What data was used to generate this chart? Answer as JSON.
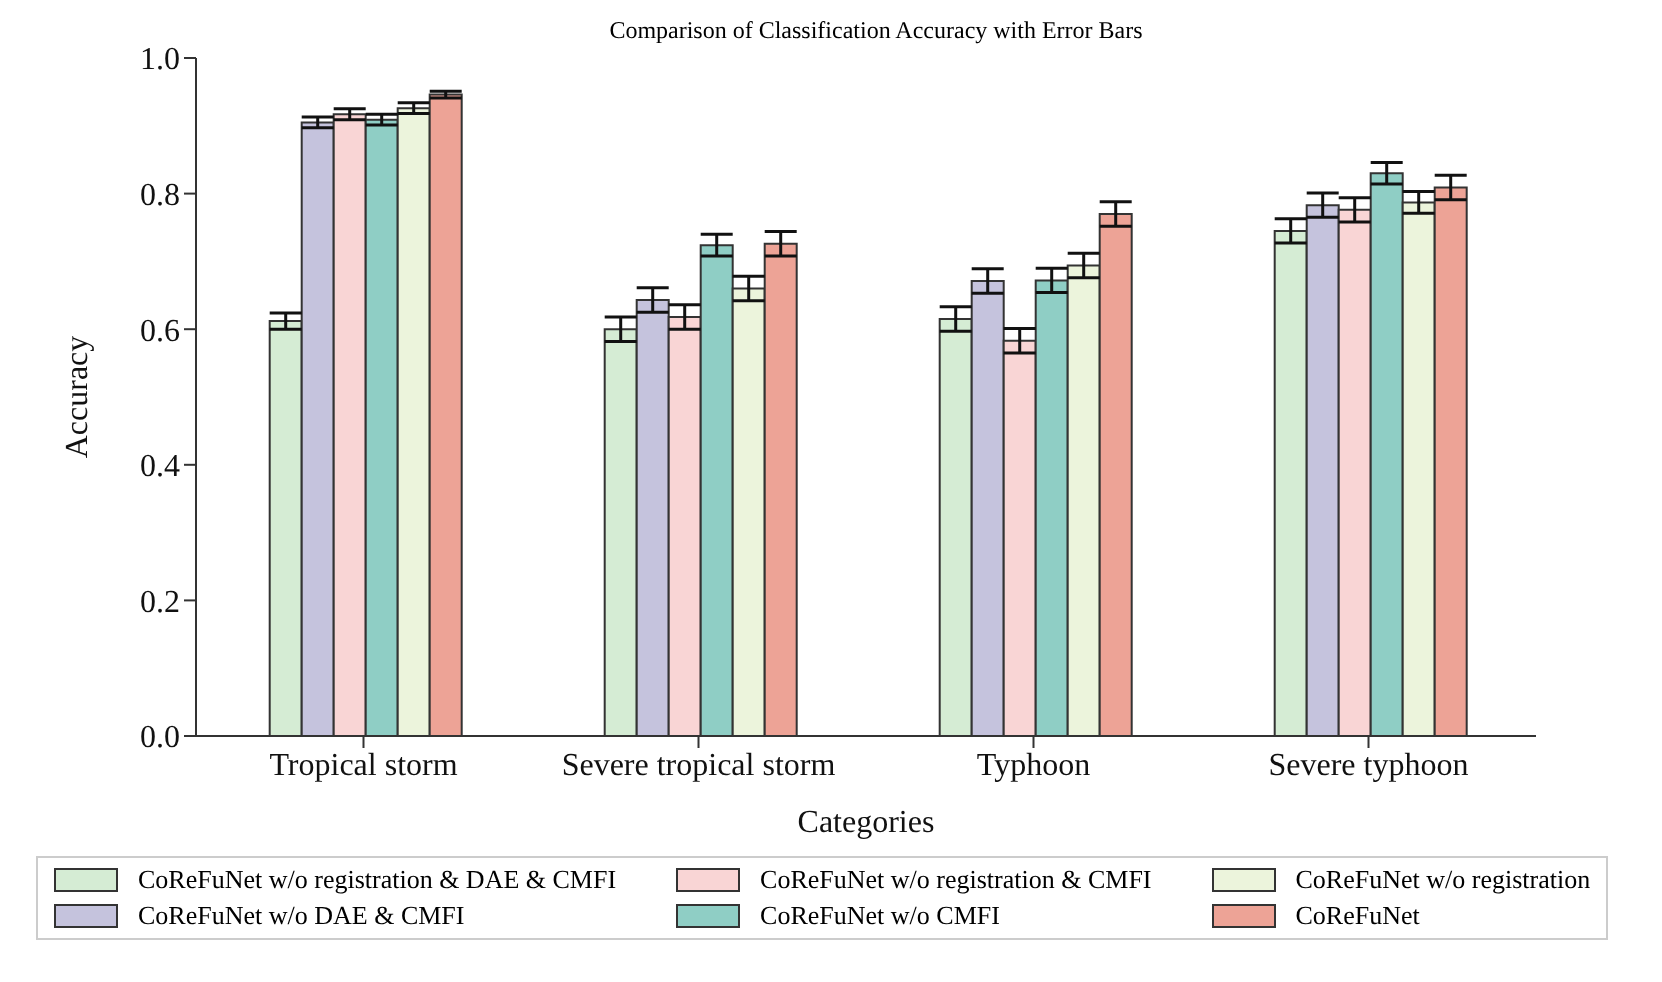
{
  "chart_data": {
    "type": "bar",
    "title": "Comparison of Classification Accuracy with Error Bars",
    "xlabel": "Categories",
    "ylabel": "Accuracy",
    "categories": [
      "Tropical storm",
      "Severe tropical storm",
      "Typhoon",
      "Severe typhoon"
    ],
    "series": [
      {
        "name": "CoReFuNet w/o registration & DAE & CMFI",
        "color": "#d5ecd4",
        "values": [
          0.612,
          0.6,
          0.615,
          0.745
        ],
        "errors": [
          0.012,
          0.018,
          0.018,
          0.018
        ]
      },
      {
        "name": "CoReFuNet w/o DAE & CMFI",
        "color": "#c5c3dd",
        "values": [
          0.905,
          0.643,
          0.671,
          0.783
        ],
        "errors": [
          0.008,
          0.018,
          0.018,
          0.018
        ]
      },
      {
        "name": "CoReFuNet w/o registration & CMFI",
        "color": "#f9d5d5",
        "values": [
          0.917,
          0.618,
          0.583,
          0.776
        ],
        "errors": [
          0.008,
          0.018,
          0.018,
          0.018
        ]
      },
      {
        "name": "CoReFuNet w/o CMFI",
        "color": "#8fcec5",
        "values": [
          0.909,
          0.724,
          0.672,
          0.83
        ],
        "errors": [
          0.008,
          0.016,
          0.018,
          0.016
        ]
      },
      {
        "name": "CoReFuNet w/o registration",
        "color": "#ecf4dc",
        "values": [
          0.926,
          0.66,
          0.694,
          0.787
        ],
        "errors": [
          0.008,
          0.018,
          0.018,
          0.016
        ]
      },
      {
        "name": "CoReFuNet",
        "color": "#eda396",
        "values": [
          0.946,
          0.726,
          0.77,
          0.809
        ],
        "errors": [
          0.005,
          0.018,
          0.018,
          0.018
        ]
      }
    ],
    "ylim": [
      0,
      1.0
    ],
    "yticks": [
      {
        "value": 0,
        "label": "0.0"
      },
      {
        "value": 0.2,
        "label": "0.2"
      },
      {
        "value": 0.4,
        "label": "0.4"
      },
      {
        "value": 0.6,
        "label": "0.6"
      },
      {
        "value": 0.8,
        "label": "0.8"
      },
      {
        "value": 1,
        "label": "1.0"
      }
    ],
    "grid": false,
    "legend": "bottom"
  }
}
